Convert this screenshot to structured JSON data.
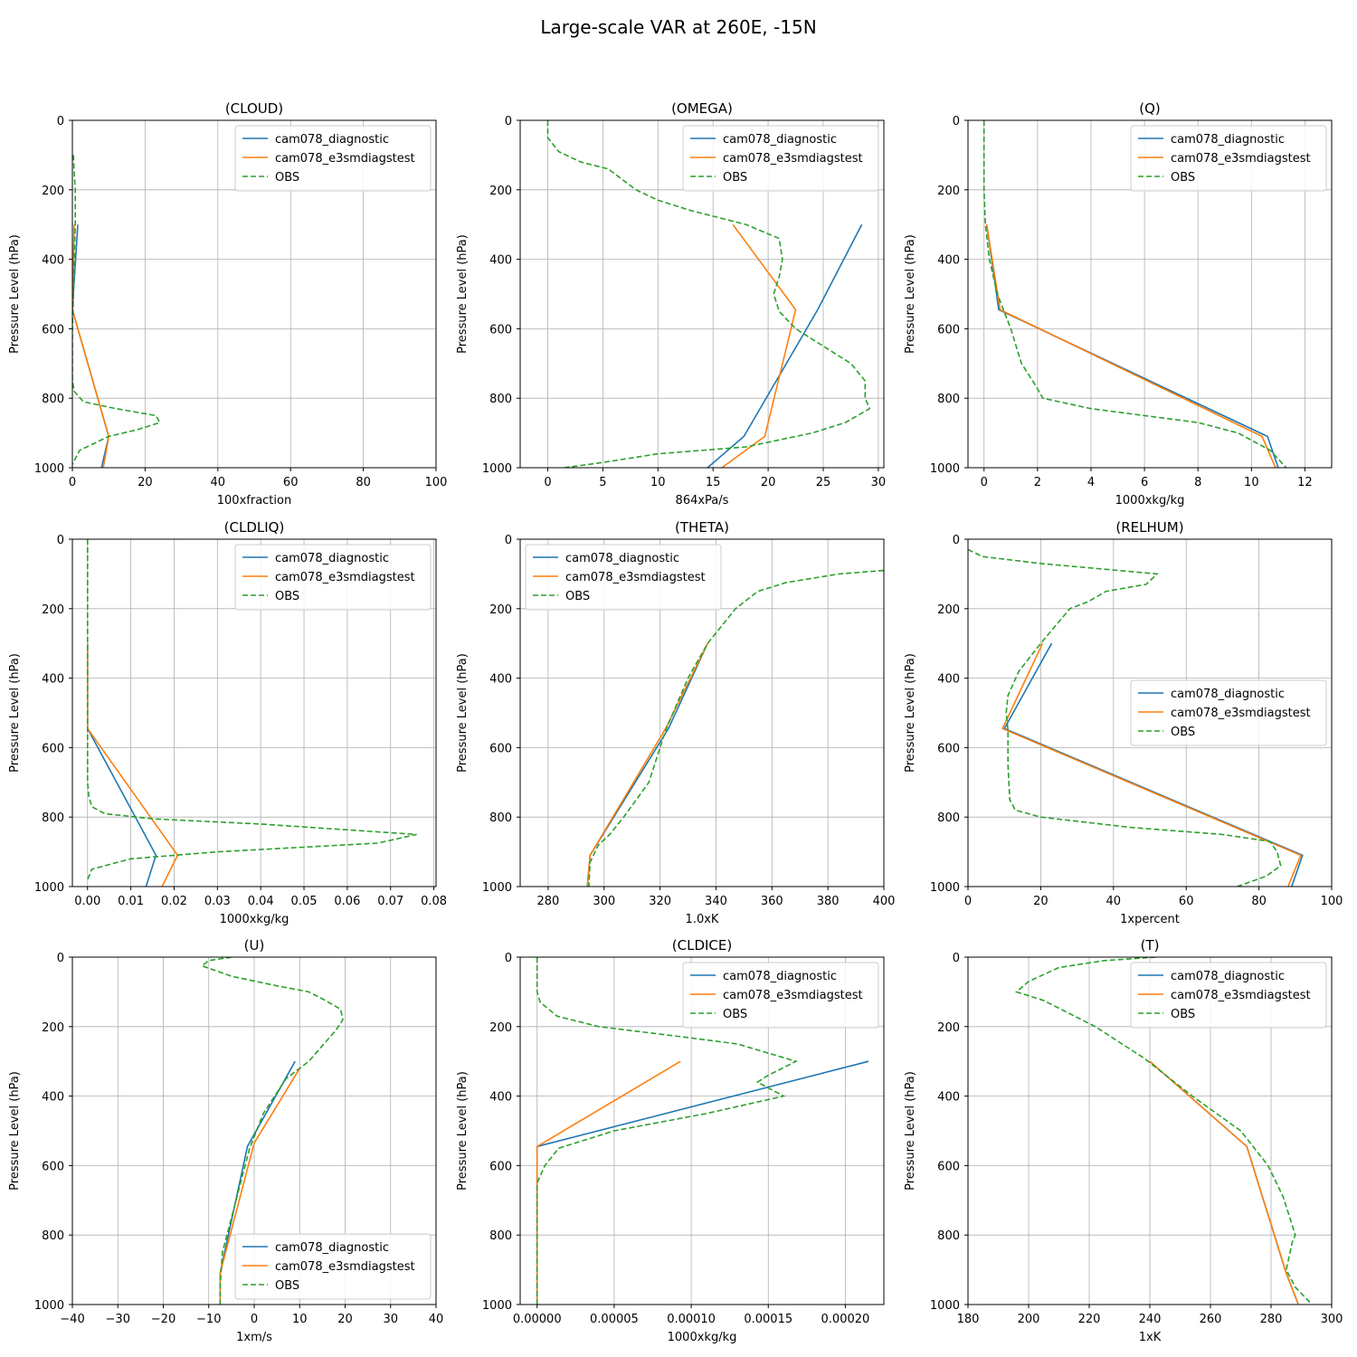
{
  "figure": {
    "title": "Large-scale VAR at 260E, -15N"
  },
  "colors": {
    "cam078_diagnostic": "#1f77b4",
    "cam078_e3smdiagstest": "#ff7f0e",
    "OBS": "#2ca02c",
    "grid": "#b0b0b0"
  },
  "chart_data": [
    {
      "type": "line",
      "title": "(CLOUD)",
      "xlabel": "100xfraction",
      "ylabel": "Pressure Level (hPa)",
      "xlim": [
        0,
        100
      ],
      "ylim": [
        1000,
        0
      ],
      "xticks": [
        0,
        20,
        40,
        60,
        80,
        100
      ],
      "yticks": [
        0,
        200,
        400,
        600,
        800,
        1000
      ],
      "legend": "top-right",
      "grid": true,
      "series": [
        {
          "name": "cam078_diagnostic",
          "style": "solid",
          "x": [
            1.5,
            0,
            10,
            8
          ],
          "y": [
            300,
            545,
            910,
            1000
          ]
        },
        {
          "name": "cam078_e3smdiagstest",
          "style": "solid",
          "x": [
            0.5,
            0,
            10,
            8.5
          ],
          "y": [
            300,
            545,
            910,
            1000
          ]
        },
        {
          "name": "OBS",
          "style": "dashed",
          "x": [
            0.3,
            0.5,
            0.8,
            0.8,
            0.5,
            0.3,
            0,
            0,
            0.5,
            3,
            12,
            23,
            24,
            18,
            10,
            2,
            0
          ],
          "y": [
            100,
            150,
            200,
            300,
            400,
            500,
            600,
            750,
            780,
            810,
            830,
            850,
            870,
            890,
            910,
            950,
            990
          ]
        }
      ]
    },
    {
      "type": "line",
      "title": "(OMEGA)",
      "xlabel": "864xPa/s",
      "ylabel": "Pressure Level (hPa)",
      "xlim": [
        -2.5,
        30.5
      ],
      "ylim": [
        1000,
        0
      ],
      "xticks": [
        0,
        5,
        10,
        15,
        20,
        25,
        30
      ],
      "yticks": [
        0,
        200,
        400,
        600,
        800,
        1000
      ],
      "legend": "top-right",
      "grid": true,
      "series": [
        {
          "name": "cam078_diagnostic",
          "style": "solid",
          "x": [
            28.5,
            24.5,
            17.8,
            14.5
          ],
          "y": [
            300,
            545,
            910,
            1000
          ]
        },
        {
          "name": "cam078_e3smdiagstest",
          "style": "solid",
          "x": [
            16.8,
            22.5,
            19.7,
            15.8
          ],
          "y": [
            300,
            545,
            910,
            1000
          ]
        },
        {
          "name": "OBS",
          "style": "dashed",
          "x": [
            0,
            0,
            1,
            3,
            5.5,
            8,
            10,
            13,
            18,
            21,
            21.3,
            21,
            20.5,
            21,
            22.5,
            25,
            27.5,
            28.8,
            28.8,
            29.2,
            27,
            24,
            18,
            10,
            5,
            1.5
          ],
          "y": [
            0,
            50,
            90,
            120,
            140,
            200,
            230,
            260,
            300,
            340,
            400,
            450,
            500,
            550,
            600,
            650,
            700,
            750,
            800,
            830,
            870,
            900,
            940,
            960,
            985,
            1000
          ]
        }
      ]
    },
    {
      "type": "line",
      "title": "(Q)",
      "xlabel": "1000xkg/kg",
      "ylabel": "Pressure Level (hPa)",
      "xlim": [
        -0.6,
        13
      ],
      "ylim": [
        1000,
        0
      ],
      "xticks": [
        0,
        2,
        4,
        6,
        8,
        10,
        12
      ],
      "yticks": [
        0,
        200,
        400,
        600,
        800,
        1000
      ],
      "legend": "top-right",
      "grid": true,
      "series": [
        {
          "name": "cam078_diagnostic",
          "style": "solid",
          "x": [
            0.1,
            0.55,
            10.6,
            11.0
          ],
          "y": [
            300,
            545,
            910,
            1000
          ]
        },
        {
          "name": "cam078_e3smdiagstest",
          "style": "solid",
          "x": [
            0.1,
            0.6,
            10.4,
            10.9
          ],
          "y": [
            300,
            545,
            910,
            1000
          ]
        },
        {
          "name": "OBS",
          "style": "dashed",
          "x": [
            0,
            0,
            0,
            0.05,
            0.2,
            0.5,
            1.0,
            1.4,
            1.9,
            2.2,
            4,
            6,
            8,
            9.5,
            10.7,
            11.3
          ],
          "y": [
            0,
            100,
            200,
            300,
            400,
            500,
            600,
            700,
            760,
            800,
            830,
            850,
            870,
            900,
            950,
            1000
          ]
        }
      ]
    },
    {
      "type": "line",
      "title": "(CLDLIQ)",
      "xlabel": "1000xkg/kg",
      "ylabel": "Pressure Level (hPa)",
      "xlim": [
        -0.0035,
        0.0805
      ],
      "ylim": [
        1000,
        0
      ],
      "xticks": [
        0,
        0.01,
        0.02,
        0.03,
        0.04,
        0.05,
        0.06,
        0.07,
        0.08
      ],
      "xticklabels": [
        "0.00",
        "0.01",
        "0.02",
        "0.03",
        "0.04",
        "0.05",
        "0.06",
        "0.07",
        "0.08"
      ],
      "yticks": [
        0,
        200,
        400,
        600,
        800,
        1000
      ],
      "legend": "top-right",
      "grid": true,
      "series": [
        {
          "name": "cam078_diagnostic",
          "style": "solid",
          "x": [
            0,
            0,
            0.0158,
            0.0135
          ],
          "y": [
            300,
            545,
            910,
            1000
          ]
        },
        {
          "name": "cam078_e3smdiagstest",
          "style": "solid",
          "x": [
            0,
            0,
            0.0208,
            0.0172
          ],
          "y": [
            300,
            545,
            910,
            1000
          ]
        },
        {
          "name": "OBS",
          "style": "dashed",
          "x": [
            0,
            0,
            0,
            0,
            0,
            0.0003,
            0.001,
            0.004,
            0.015,
            0.04,
            0.076,
            0.067,
            0.03,
            0.01,
            0.001,
            0
          ],
          "y": [
            0,
            200,
            400,
            550,
            700,
            740,
            770,
            790,
            805,
            820,
            850,
            875,
            900,
            920,
            950,
            980
          ]
        }
      ]
    },
    {
      "type": "line",
      "title": "(THETA)",
      "xlabel": "1.0xK",
      "ylabel": "Pressure Level (hPa)",
      "xlim": [
        270,
        400
      ],
      "ylim": [
        1000,
        0
      ],
      "xticks": [
        280,
        300,
        320,
        340,
        360,
        380,
        400
      ],
      "yticks": [
        0,
        200,
        400,
        600,
        800,
        1000
      ],
      "legend": "top-left",
      "grid": true,
      "series": [
        {
          "name": "cam078_diagnostic",
          "style": "solid",
          "x": [
            337,
            323,
            295,
            294
          ],
          "y": [
            300,
            545,
            910,
            1000
          ]
        },
        {
          "name": "cam078_e3smdiagstest",
          "style": "solid",
          "x": [
            337,
            322,
            295,
            294
          ],
          "y": [
            300,
            545,
            910,
            1000
          ]
        },
        {
          "name": "OBS",
          "style": "dashed",
          "x": [
            400,
            384,
            365,
            355,
            347,
            337,
            330,
            322,
            316,
            307,
            302,
            298,
            295,
            294.5
          ],
          "y": [
            90,
            100,
            125,
            150,
            200,
            300,
            400,
            550,
            700,
            800,
            850,
            880,
            930,
            1000
          ]
        }
      ]
    },
    {
      "type": "line",
      "title": "(RELHUM)",
      "xlabel": "1xpercent",
      "ylabel": "Pressure Level (hPa)",
      "xlim": [
        0,
        100
      ],
      "ylim": [
        1000,
        0
      ],
      "xticks": [
        0,
        20,
        40,
        60,
        80,
        100
      ],
      "yticks": [
        0,
        200,
        400,
        600,
        800,
        1000
      ],
      "legend": "center-right",
      "grid": true,
      "series": [
        {
          "name": "cam078_diagnostic",
          "style": "solid",
          "x": [
            23,
            10,
            92,
            89
          ],
          "y": [
            300,
            545,
            910,
            1000
          ]
        },
        {
          "name": "cam078_e3smdiagstest",
          "style": "solid",
          "x": [
            20.5,
            9.5,
            91.5,
            88
          ],
          "y": [
            300,
            545,
            910,
            1000
          ]
        },
        {
          "name": "OBS",
          "style": "dashed",
          "x": [
            0,
            4,
            20,
            52,
            49,
            38,
            33,
            28,
            20,
            14,
            11,
            10.5,
            11,
            11,
            11.5,
            13,
            20,
            45,
            70,
            83,
            85,
            86,
            82,
            74
          ],
          "y": [
            30,
            50,
            70,
            100,
            130,
            150,
            180,
            200,
            300,
            380,
            450,
            500,
            550,
            650,
            750,
            780,
            800,
            830,
            850,
            870,
            900,
            940,
            970,
            1000
          ]
        }
      ]
    },
    {
      "type": "line",
      "title": "(U)",
      "xlabel": "1xm/s",
      "ylabel": "Pressure Level (hPa)",
      "xlim": [
        -40,
        40
      ],
      "ylim": [
        1000,
        0
      ],
      "xticks": [
        -40,
        -30,
        -20,
        -10,
        0,
        10,
        20,
        30,
        40
      ],
      "xticklabels": [
        "−40",
        "−30",
        "−20",
        "−10",
        "0",
        "10",
        "20",
        "30",
        "40"
      ],
      "yticks": [
        0,
        200,
        400,
        600,
        800,
        1000
      ],
      "legend": "bottom-right",
      "grid": true,
      "series": [
        {
          "name": "cam078_diagnostic",
          "style": "solid",
          "x": [
            9,
            -1.5,
            -7.5,
            -7.5
          ],
          "y": [
            300,
            545,
            910,
            1000
          ]
        },
        {
          "name": "cam078_e3smdiagstest",
          "style": "solid",
          "x": [
            10,
            0,
            -7.5,
            -7.5
          ],
          "y": [
            320,
            535,
            910,
            1000
          ]
        },
        {
          "name": "OBS",
          "style": "dashed",
          "x": [
            -5,
            -10,
            -11.5,
            -5,
            4,
            12,
            15,
            19,
            19.5,
            18,
            12,
            7,
            2,
            -1,
            -3,
            -5,
            -7,
            -7.5,
            -7.5
          ],
          "y": [
            0,
            10,
            25,
            55,
            80,
            100,
            120,
            150,
            180,
            210,
            300,
            350,
            450,
            550,
            650,
            750,
            850,
            950,
            1000
          ]
        }
      ]
    },
    {
      "type": "line",
      "title": "(CLDICE)",
      "xlabel": "1000xkg/kg",
      "ylabel": "Pressure Level (hPa)",
      "xlim": [
        -1.1e-05,
        0.000225
      ],
      "ylim": [
        1000,
        0
      ],
      "xticks": [
        0,
        5e-05,
        0.0001,
        0.00015,
        0.0002
      ],
      "xticklabels": [
        "0.00000",
        "0.00005",
        "0.00010",
        "0.00015",
        "0.00020"
      ],
      "yticks": [
        0,
        200,
        400,
        600,
        800,
        1000
      ],
      "legend": "top-right",
      "grid": true,
      "series": [
        {
          "name": "cam078_diagnostic",
          "style": "solid",
          "x": [
            0.000215,
            0,
            0,
            0
          ],
          "y": [
            300,
            545,
            910,
            1000
          ]
        },
        {
          "name": "cam078_e3smdiagstest",
          "style": "solid",
          "x": [
            9.3e-05,
            0,
            0,
            0
          ],
          "y": [
            300,
            545,
            910,
            1000
          ]
        },
        {
          "name": "OBS",
          "style": "dashed",
          "x": [
            0,
            0,
            2e-06,
            1.3e-05,
            4e-05,
            9.5e-05,
            0.00013,
            0.000168,
            0.00015,
            0.000143,
            0.00016,
            0.00011,
            5e-05,
            1.4e-05,
            5e-06,
            0,
            0,
            0
          ],
          "y": [
            0,
            100,
            130,
            170,
            200,
            230,
            250,
            300,
            340,
            360,
            400,
            450,
            500,
            550,
            600,
            650,
            800,
            1000
          ]
        }
      ]
    },
    {
      "type": "line",
      "title": "(T)",
      "xlabel": "1xK",
      "ylabel": "Pressure Level (hPa)",
      "xlim": [
        180,
        300
      ],
      "ylim": [
        1000,
        0
      ],
      "xticks": [
        180,
        200,
        220,
        240,
        260,
        280,
        300
      ],
      "yticks": [
        0,
        200,
        400,
        600,
        800,
        1000
      ],
      "legend": "top-right",
      "grid": true,
      "series": [
        {
          "name": "cam078_diagnostic",
          "style": "solid",
          "x": [
            240,
            272,
            285,
            289
          ],
          "y": [
            300,
            545,
            910,
            1000
          ]
        },
        {
          "name": "cam078_e3smdiagstest",
          "style": "solid",
          "x": [
            240,
            272,
            285,
            289
          ],
          "y": [
            300,
            545,
            910,
            1000
          ]
        },
        {
          "name": "OBS",
          "style": "dashed",
          "x": [
            242,
            225,
            210,
            200,
            196,
            205,
            222,
            238,
            254,
            270,
            279,
            284,
            288,
            287,
            285,
            288,
            293.5
          ],
          "y": [
            0,
            10,
            30,
            70,
            100,
            125,
            200,
            290,
            400,
            500,
            600,
            690,
            800,
            820,
            900,
            950,
            1000
          ]
        }
      ]
    }
  ]
}
